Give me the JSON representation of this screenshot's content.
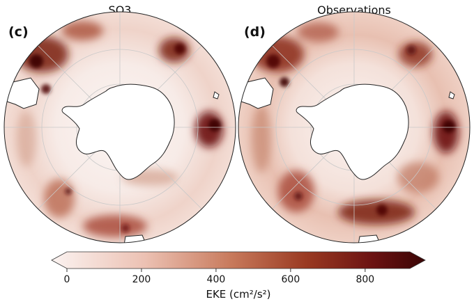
{
  "panels": [
    {
      "letter": "(c)",
      "title": "SO3",
      "variant": "model"
    },
    {
      "letter": "(d)",
      "title": "Observations",
      "variant": "obs"
    }
  ],
  "colorbar": {
    "label": "EKE (cm²/s²)",
    "ticks": [
      "0",
      "200",
      "400",
      "600",
      "800"
    ],
    "tick_values": [
      0,
      200,
      400,
      600,
      800
    ],
    "range": [
      0,
      920
    ],
    "extend": "both",
    "colors": [
      "#fbf3f1",
      "#ecc1b3",
      "#c87a5c",
      "#9a3a22",
      "#6b1212",
      "#3a0505"
    ]
  },
  "land_color": "#ffffff",
  "coast_color": "#222222",
  "grid_color": "#c9c9c9"
}
